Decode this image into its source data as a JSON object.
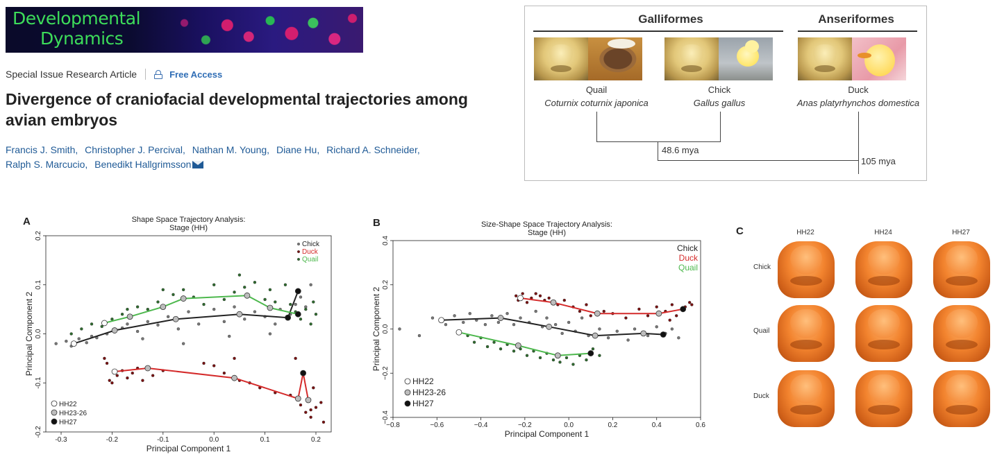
{
  "banner": {
    "line1": "Developmental",
    "line2": "Dynamics"
  },
  "article": {
    "type": "Special Issue Research Article",
    "access": "Free Access",
    "title": "Divergence of craniofacial developmental trajectories among avian embryos",
    "authors": [
      "Francis J. Smith,",
      "Christopher J. Percival,",
      "Nathan M. Young,",
      "Diane Hu,",
      "Richard A. Schneider,",
      "Ralph S. Marcucio,",
      "Benedikt Hallgrimsson"
    ]
  },
  "phylogeny": {
    "orders": [
      "Galliformes",
      "Anseriformes"
    ],
    "species": [
      {
        "name": "Quail",
        "latin": "Coturnix coturnix japonica"
      },
      {
        "name": "Chick",
        "latin": "Gallus gallus"
      },
      {
        "name": "Duck",
        "latin": "Anas platyrhynchos domestica"
      }
    ],
    "divergences": [
      "48.6 mya",
      "105 mya"
    ]
  },
  "colors": {
    "chick": "#222222",
    "duck": "#d42a2a",
    "quail": "#4db84d",
    "chick_dot": "#777777",
    "duck_dot": "#7a1010",
    "quail_dot": "#2e6b2e"
  },
  "chart_data": [
    {
      "panel": "A",
      "type": "scatter",
      "title": "Shape Space Trajectory Analysis:",
      "subtitle": "Stage (HH)",
      "xlabel": "Principal Component 1",
      "ylabel": "Principal Component 2",
      "xlim": [
        -0.33,
        0.23
      ],
      "ylim": [
        -0.2,
        0.2
      ],
      "xticks": [
        -0.3,
        -0.2,
        -0.1,
        0.0,
        0.1,
        0.2
      ],
      "yticks": [
        -0.2,
        -0.1,
        0.0,
        0.1,
        0.2
      ],
      "xtick_labels": [
        "-0.3",
        "-0.2",
        "-0.1",
        "0.0",
        "0.1",
        "0.2"
      ],
      "ytick_labels": [
        "-0.2",
        "-0.1",
        "0.0",
        "0.1",
        "0.2"
      ],
      "legend_series": [
        "Chick",
        "Duck",
        "Quail"
      ],
      "legend_stages": [
        "HH22",
        "HH23-26",
        "HH27"
      ],
      "series": [
        {
          "name": "Chick",
          "color_key": "chick",
          "trajectory": [
            [
              -0.275,
              -0.02
            ],
            [
              -0.195,
              0.007
            ],
            [
              -0.075,
              0.03
            ],
            [
              0.05,
              0.04
            ],
            [
              0.145,
              0.033
            ],
            [
              0.165,
              0.087
            ]
          ],
          "stages": [
            "HH22",
            "HH23-26",
            "HH23-26",
            "HH23-26",
            "HH27",
            "HH27"
          ],
          "points": [
            [
              -0.31,
              -0.02
            ],
            [
              -0.29,
              -0.015
            ],
            [
              -0.28,
              -0.025
            ],
            [
              -0.265,
              -0.01
            ],
            [
              -0.25,
              -0.018
            ],
            [
              -0.23,
              -0.008
            ],
            [
              -0.21,
              0.0
            ],
            [
              -0.18,
              0.012
            ],
            [
              -0.17,
              0.02
            ],
            [
              -0.15,
              0.005
            ],
            [
              -0.13,
              0.025
            ],
            [
              -0.11,
              0.018
            ],
            [
              -0.09,
              0.035
            ],
            [
              -0.07,
              0.01
            ],
            [
              -0.05,
              0.045
            ],
            [
              -0.03,
              0.02
            ],
            [
              0.0,
              0.05
            ],
            [
              0.02,
              0.025
            ],
            [
              0.04,
              0.055
            ],
            [
              0.06,
              0.03
            ],
            [
              0.08,
              0.045
            ],
            [
              0.1,
              0.035
            ],
            [
              0.12,
              0.02
            ],
            [
              0.13,
              0.05
            ],
            [
              0.15,
              0.04
            ],
            [
              0.16,
              0.06
            ],
            [
              0.17,
              0.075
            ],
            [
              0.18,
              0.055
            ],
            [
              0.19,
              0.1
            ],
            [
              -0.24,
              -0.005
            ],
            [
              -0.14,
              -0.01
            ],
            [
              -0.06,
              -0.02
            ],
            [
              0.03,
              -0.005
            ],
            [
              0.11,
              0.0
            ]
          ]
        },
        {
          "name": "Duck",
          "color_key": "duck",
          "trajectory": [
            [
              -0.195,
              -0.077
            ],
            [
              -0.13,
              -0.07
            ],
            [
              0.04,
              -0.09
            ],
            [
              0.165,
              -0.132
            ],
            [
              0.175,
              -0.08
            ],
            [
              0.185,
              -0.135
            ]
          ],
          "stages": [
            "HH22",
            "HH23-26",
            "HH23-26",
            "HH23-26",
            "HH27",
            "HH23-26"
          ],
          "points": [
            [
              -0.215,
              -0.05
            ],
            [
              -0.21,
              -0.06
            ],
            [
              -0.205,
              -0.095
            ],
            [
              -0.2,
              -0.1
            ],
            [
              -0.19,
              -0.085
            ],
            [
              -0.18,
              -0.075
            ],
            [
              -0.17,
              -0.09
            ],
            [
              -0.16,
              -0.08
            ],
            [
              -0.15,
              -0.07
            ],
            [
              -0.14,
              -0.095
            ],
            [
              -0.12,
              -0.085
            ],
            [
              -0.1,
              -0.075
            ],
            [
              -0.02,
              -0.06
            ],
            [
              0.0,
              -0.065
            ],
            [
              0.02,
              -0.08
            ],
            [
              0.04,
              -0.05
            ],
            [
              0.05,
              -0.095
            ],
            [
              0.07,
              -0.1
            ],
            [
              0.09,
              -0.11
            ],
            [
              0.12,
              -0.12
            ],
            [
              0.15,
              -0.125
            ],
            [
              0.16,
              -0.05
            ],
            [
              0.17,
              -0.145
            ],
            [
              0.18,
              -0.16
            ],
            [
              0.19,
              -0.155
            ],
            [
              0.19,
              -0.17
            ],
            [
              0.2,
              -0.15
            ],
            [
              0.21,
              -0.14
            ],
            [
              0.215,
              -0.18
            ],
            [
              0.195,
              -0.11
            ]
          ]
        },
        {
          "name": "Quail",
          "color_key": "quail",
          "trajectory": [
            [
              -0.215,
              0.022
            ],
            [
              -0.165,
              0.035
            ],
            [
              -0.1,
              0.055
            ],
            [
              -0.06,
              0.072
            ],
            [
              0.065,
              0.078
            ],
            [
              0.11,
              0.053
            ],
            [
              0.165,
              0.04
            ]
          ],
          "stages": [
            "HH22",
            "HH23-26",
            "HH23-26",
            "HH23-26",
            "HH23-26",
            "HH23-26",
            "HH27"
          ],
          "points": [
            [
              -0.28,
              0.0
            ],
            [
              -0.26,
              0.01
            ],
            [
              -0.24,
              0.02
            ],
            [
              -0.22,
              0.015
            ],
            [
              -0.2,
              0.03
            ],
            [
              -0.18,
              0.04
            ],
            [
              -0.17,
              0.05
            ],
            [
              -0.15,
              0.055
            ],
            [
              -0.13,
              0.05
            ],
            [
              -0.11,
              0.065
            ],
            [
              -0.1,
              0.09
            ],
            [
              -0.08,
              0.08
            ],
            [
              -0.06,
              0.09
            ],
            [
              -0.04,
              0.075
            ],
            [
              -0.02,
              0.06
            ],
            [
              0.0,
              0.1
            ],
            [
              0.02,
              0.07
            ],
            [
              0.04,
              0.085
            ],
            [
              0.05,
              0.12
            ],
            [
              0.06,
              0.095
            ],
            [
              0.08,
              0.105
            ],
            [
              0.1,
              0.07
            ],
            [
              0.11,
              0.09
            ],
            [
              0.12,
              0.065
            ],
            [
              0.14,
              0.1
            ],
            [
              0.15,
              0.06
            ],
            [
              0.16,
              0.045
            ],
            [
              0.17,
              0.03
            ],
            [
              0.18,
              0.05
            ],
            [
              0.19,
              0.02
            ],
            [
              0.2,
              0.04
            ],
            [
              0.195,
              0.065
            ]
          ]
        }
      ]
    },
    {
      "panel": "B",
      "type": "scatter",
      "title": "Size-Shape Space Trajectory Analysis:",
      "subtitle": "Stage (HH)",
      "xlabel": "Principal Component 1",
      "ylabel": "Principal Component 2",
      "xlim": [
        -0.8,
        0.6
      ],
      "ylim": [
        -0.4,
        0.4
      ],
      "xticks": [
        -0.8,
        -0.6,
        -0.4,
        -0.2,
        0.0,
        0.2,
        0.4,
        0.6
      ],
      "yticks": [
        -0.4,
        -0.2,
        0.0,
        0.2,
        0.4
      ],
      "xtick_labels": [
        "−0.8",
        "−0.6",
        "−0.4",
        "−0.2",
        "0.0",
        "0.2",
        "0.4",
        "0.6"
      ],
      "ytick_labels": [
        "−0.4",
        "−0.2",
        "0.0",
        "0.2",
        "0.4"
      ],
      "legend_series": [
        "Chick",
        "Duck",
        "Quail"
      ],
      "legend_stages": [
        "HH22",
        "HH23-26",
        "HH27"
      ],
      "series": [
        {
          "name": "Chick",
          "color_key": "chick",
          "trajectory": [
            [
              -0.58,
              0.04
            ],
            [
              -0.31,
              0.05
            ],
            [
              -0.09,
              0.01
            ],
            [
              0.12,
              -0.03
            ],
            [
              0.34,
              -0.02
            ],
            [
              0.43,
              -0.025
            ]
          ],
          "stages": [
            "HH22",
            "HH23-26",
            "HH23-26",
            "HH23-26",
            "HH23-26",
            "HH27"
          ],
          "points": [
            [
              -0.77,
              0.0
            ],
            [
              -0.68,
              -0.03
            ],
            [
              -0.62,
              0.05
            ],
            [
              -0.56,
              0.02
            ],
            [
              -0.52,
              0.06
            ],
            [
              -0.48,
              0.03
            ],
            [
              -0.45,
              0.07
            ],
            [
              -0.42,
              0.04
            ],
            [
              -0.38,
              0.02
            ],
            [
              -0.35,
              0.06
            ],
            [
              -0.32,
              0.03
            ],
            [
              -0.28,
              0.07
            ],
            [
              -0.25,
              0.02
            ],
            [
              -0.22,
              0.05
            ],
            [
              -0.18,
              0.03
            ],
            [
              -0.15,
              0.08
            ],
            [
              -0.12,
              0.01
            ],
            [
              -0.1,
              0.05
            ],
            [
              -0.06,
              0.02
            ],
            [
              -0.03,
              -0.02
            ],
            [
              0.0,
              0.03
            ],
            [
              0.03,
              -0.01
            ],
            [
              0.06,
              0.05
            ],
            [
              0.09,
              -0.03
            ],
            [
              0.14,
              0.0
            ],
            [
              0.18,
              -0.04
            ],
            [
              0.22,
              -0.01
            ],
            [
              0.27,
              -0.05
            ],
            [
              0.3,
              0.0
            ],
            [
              0.36,
              -0.03
            ],
            [
              0.4,
              0.01
            ],
            [
              0.44,
              -0.02
            ],
            [
              0.47,
              0.0
            ],
            [
              0.5,
              -0.04
            ]
          ]
        },
        {
          "name": "Duck",
          "color_key": "duck",
          "trajectory": [
            [
              -0.22,
              0.14
            ],
            [
              -0.07,
              0.12
            ],
            [
              0.13,
              0.07
            ],
            [
              0.41,
              0.07
            ],
            [
              0.52,
              0.09
            ]
          ],
          "stages": [
            "HH22",
            "HH23-26",
            "HH23-26",
            "HH23-26",
            "HH27"
          ],
          "points": [
            [
              -0.24,
              0.15
            ],
            [
              -0.23,
              0.13
            ],
            [
              -0.21,
              0.16
            ],
            [
              -0.19,
              0.12
            ],
            [
              -0.17,
              0.14
            ],
            [
              -0.15,
              0.16
            ],
            [
              -0.13,
              0.15
            ],
            [
              -0.11,
              0.13
            ],
            [
              -0.09,
              0.14
            ],
            [
              -0.05,
              0.11
            ],
            [
              -0.02,
              0.13
            ],
            [
              0.02,
              0.1
            ],
            [
              0.05,
              0.08
            ],
            [
              0.08,
              0.11
            ],
            [
              0.1,
              0.06
            ],
            [
              0.16,
              0.08
            ],
            [
              0.2,
              0.07
            ],
            [
              0.26,
              0.05
            ],
            [
              0.32,
              0.09
            ],
            [
              0.36,
              0.06
            ],
            [
              0.4,
              0.1
            ],
            [
              0.44,
              0.08
            ],
            [
              0.47,
              0.11
            ],
            [
              0.49,
              0.06
            ],
            [
              0.53,
              0.1
            ],
            [
              0.55,
              0.12
            ],
            [
              0.56,
              0.11
            ],
            [
              0.46,
              0.04
            ]
          ]
        },
        {
          "name": "Quail",
          "color_key": "quail",
          "trajectory": [
            [
              -0.5,
              -0.015
            ],
            [
              -0.23,
              -0.075
            ],
            [
              -0.05,
              -0.12
            ],
            [
              0.1,
              -0.11
            ]
          ],
          "stages": [
            "HH22",
            "HH23-26",
            "HH23-26",
            "HH27"
          ],
          "points": [
            [
              -0.46,
              -0.03
            ],
            [
              -0.43,
              -0.06
            ],
            [
              -0.4,
              -0.04
            ],
            [
              -0.37,
              -0.08
            ],
            [
              -0.34,
              -0.06
            ],
            [
              -0.31,
              -0.09
            ],
            [
              -0.28,
              -0.07
            ],
            [
              -0.25,
              -0.1
            ],
            [
              -0.22,
              -0.09
            ],
            [
              -0.19,
              -0.12
            ],
            [
              -0.16,
              -0.1
            ],
            [
              -0.13,
              -0.13
            ],
            [
              -0.1,
              -0.11
            ],
            [
              -0.07,
              -0.14
            ],
            [
              -0.04,
              -0.15
            ],
            [
              -0.01,
              -0.13
            ],
            [
              0.02,
              -0.16
            ],
            [
              0.05,
              -0.12
            ],
            [
              0.08,
              -0.14
            ],
            [
              0.11,
              -0.09
            ],
            [
              0.14,
              -0.12
            ]
          ]
        }
      ]
    }
  ],
  "panel_c": {
    "label": "C",
    "columns": [
      "HH22",
      "HH24",
      "HH27"
    ],
    "rows": [
      "Chick",
      "Quail",
      "Duck"
    ]
  }
}
